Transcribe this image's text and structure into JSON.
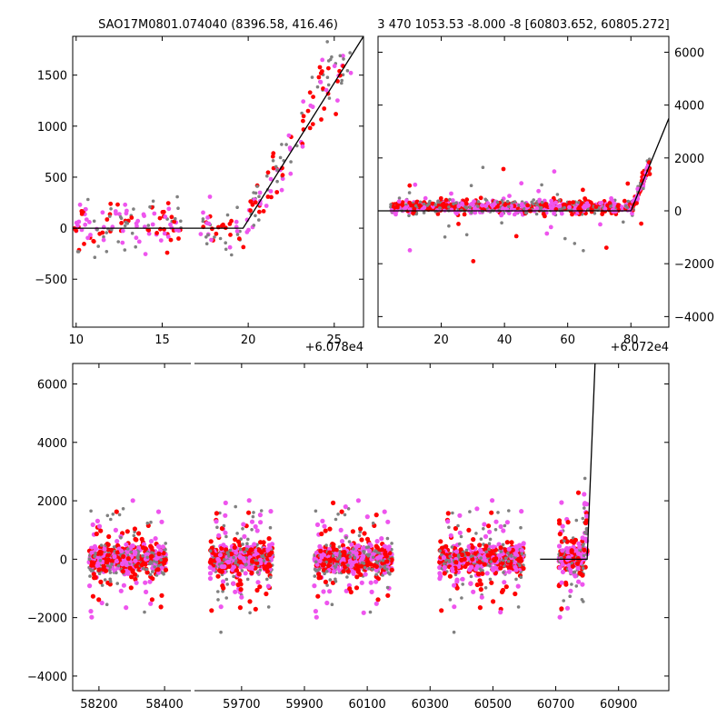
{
  "colors": {
    "gray": "#808080",
    "red": "#ff0000",
    "magenta": "#ee55ee",
    "model": "#000000"
  },
  "chart_data": [
    {
      "type": "scatter",
      "title": "SAO17M0801.074040 (8396.58, 416.46)",
      "offset_label": "+6.078e4",
      "x_ticks": [
        "10",
        "15",
        "20",
        "25"
      ],
      "y_ticks": [
        "−500",
        "0",
        "500",
        "1000",
        "1500"
      ],
      "xlim": [
        9.8,
        26.7
      ],
      "ylim": [
        -970,
        1880
      ],
      "model": {
        "x": [
          9.8,
          19.7,
          26.7
        ],
        "y": [
          0,
          0,
          1880
        ]
      }
    },
    {
      "type": "scatter",
      "title": "3 470 1053.53 -8.000 -8 [60803.652, 60805.272]",
      "offset_label": "+6.072e4",
      "x_ticks": [
        "20",
        "40",
        "60",
        "80"
      ],
      "y_ticks": [
        "−4000",
        "−2000",
        "0",
        "2000",
        "4000",
        "6000"
      ],
      "xlim": [
        0,
        92
      ],
      "ylim": [
        -4400,
        6600
      ],
      "model": {
        "x": [
          0,
          80,
          92
        ],
        "y": [
          0,
          0,
          3500
        ]
      }
    },
    {
      "type": "scatter",
      "x_ticks": [
        "58200",
        "58400",
        "59700",
        "59900",
        "60100",
        "60300",
        "60500",
        "60700",
        "60900"
      ],
      "y_ticks": [
        "−4000",
        "−2000",
        "0",
        "2000",
        "4000",
        "6000"
      ],
      "ylim": [
        -4500,
        6700
      ],
      "segments": [
        {
          "xlim": [
            58120,
            58480
          ],
          "groups": [
            [
              58170,
              58405
            ]
          ]
        },
        {
          "xlim": [
            59550,
            61060
          ],
          "groups": [
            [
              59600,
              59800
            ],
            [
              59930,
              60180
            ],
            [
              60330,
              60600
            ],
            [
              60710,
              60800
            ]
          ]
        }
      ],
      "model": {
        "x": [
          60650,
          60710,
          60800,
          60825
        ],
        "y": [
          0,
          0,
          0,
          6700
        ]
      }
    }
  ]
}
